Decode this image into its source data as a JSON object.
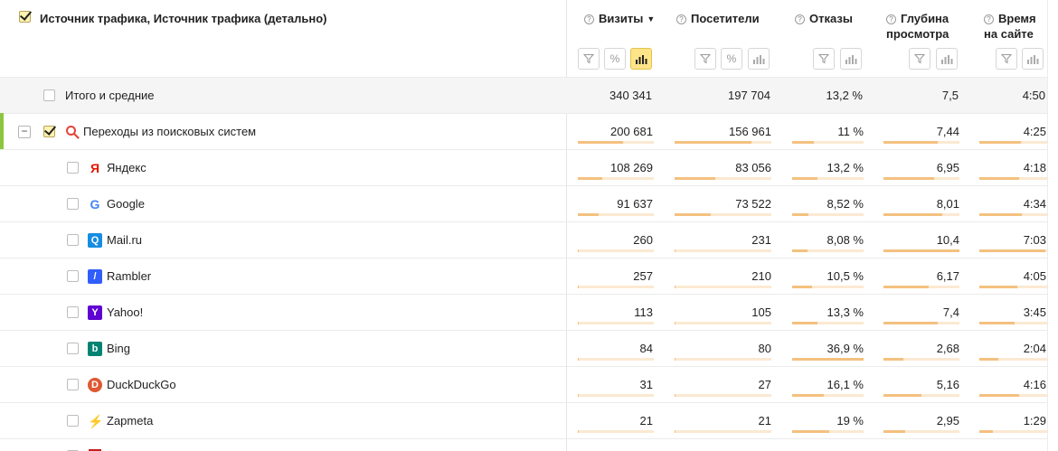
{
  "header": {
    "dimension_title": "Источник трафика, Источник трафика (детально)",
    "help_glyph": "?",
    "sort_arrow": "▼",
    "metrics": [
      {
        "key": "visits",
        "label_line1": "Визиты",
        "label_line2": "",
        "sorted": true
      },
      {
        "key": "visitors",
        "label_line1": "Посетители",
        "label_line2": "",
        "sorted": false
      },
      {
        "key": "bounces",
        "label_line1": "Отказы",
        "label_line2": "",
        "sorted": false
      },
      {
        "key": "depth",
        "label_line1": "Глубина",
        "label_line2": "просмотра",
        "sorted": false
      },
      {
        "key": "time",
        "label_line1": "Время",
        "label_line2": "на сайте",
        "sorted": false
      }
    ],
    "percent_glyph": "%"
  },
  "totals": {
    "label": "Итого и средние",
    "values": [
      "340 341",
      "197 704",
      "13,2 %",
      "7,5",
      "4:50"
    ]
  },
  "group": {
    "label": "Переходы из поисковых систем",
    "collapse_glyph": "−",
    "icon": "search-icon",
    "values": [
      "200 681",
      "156 961",
      "11 %",
      "7,44",
      "4:25"
    ],
    "fractions": [
      0.59,
      0.79,
      0.3,
      0.72,
      0.61
    ]
  },
  "rows": [
    {
      "label": "Яндекс",
      "icon": "yandex-icon",
      "glyph": "Я",
      "color": "#e61400",
      "values": [
        "108 269",
        "83 056",
        "13,2 %",
        "6,95",
        "4:18"
      ],
      "fractions": [
        0.32,
        0.42,
        0.36,
        0.67,
        0.59
      ]
    },
    {
      "label": "Google",
      "icon": "google-icon",
      "glyph": "G",
      "color": "#4285f4",
      "values": [
        "91 637",
        "73 522",
        "8,52 %",
        "8,01",
        "4:34"
      ],
      "fractions": [
        0.27,
        0.37,
        0.23,
        0.77,
        0.63
      ]
    },
    {
      "label": "Mail.ru",
      "icon": "mailru-icon",
      "glyph": "Q",
      "color": "#168de2",
      "values": [
        "260",
        "231",
        "8,08 %",
        "10,4",
        "7:03"
      ],
      "fractions": [
        0.01,
        0.01,
        0.22,
        1.0,
        0.97
      ]
    },
    {
      "label": "Rambler",
      "icon": "rambler-icon",
      "glyph": "/",
      "color": "#315efb",
      "values": [
        "257",
        "210",
        "10,5 %",
        "6,17",
        "4:05"
      ],
      "fractions": [
        0.01,
        0.01,
        0.28,
        0.59,
        0.56
      ]
    },
    {
      "label": "Yahoo!",
      "icon": "yahoo-icon",
      "glyph": "Y",
      "color": "#5f01d1",
      "values": [
        "113",
        "105",
        "13,3 %",
        "7,4",
        "3:45"
      ],
      "fractions": [
        0.005,
        0.005,
        0.36,
        0.71,
        0.52
      ]
    },
    {
      "label": "Bing",
      "icon": "bing-icon",
      "glyph": "b",
      "color": "#008373",
      "values": [
        "84",
        "80",
        "36,9 %",
        "2,68",
        "2:04"
      ],
      "fractions": [
        0.004,
        0.004,
        1.0,
        0.26,
        0.28
      ]
    },
    {
      "label": "DuckDuckGo",
      "icon": "duckduckgo-icon",
      "glyph": "D",
      "color": "#de5833",
      "values": [
        "31",
        "27",
        "16,1 %",
        "5,16",
        "4:16"
      ],
      "fractions": [
        0.002,
        0.002,
        0.44,
        0.5,
        0.59
      ]
    },
    {
      "label": "Zapmeta",
      "icon": "zapmeta-icon",
      "glyph": "⚡",
      "color": "#f0b400",
      "values": [
        "21",
        "21",
        "19 %",
        "2,95",
        "1:29"
      ],
      "fractions": [
        0.001,
        0.001,
        0.52,
        0.28,
        0.2
      ]
    }
  ],
  "colors": {
    "bar_fill": "#f4c17f",
    "bar_track": "#fbe9d2",
    "group_accent": "#8cc63f",
    "active_tool": "#ffe58a"
  }
}
